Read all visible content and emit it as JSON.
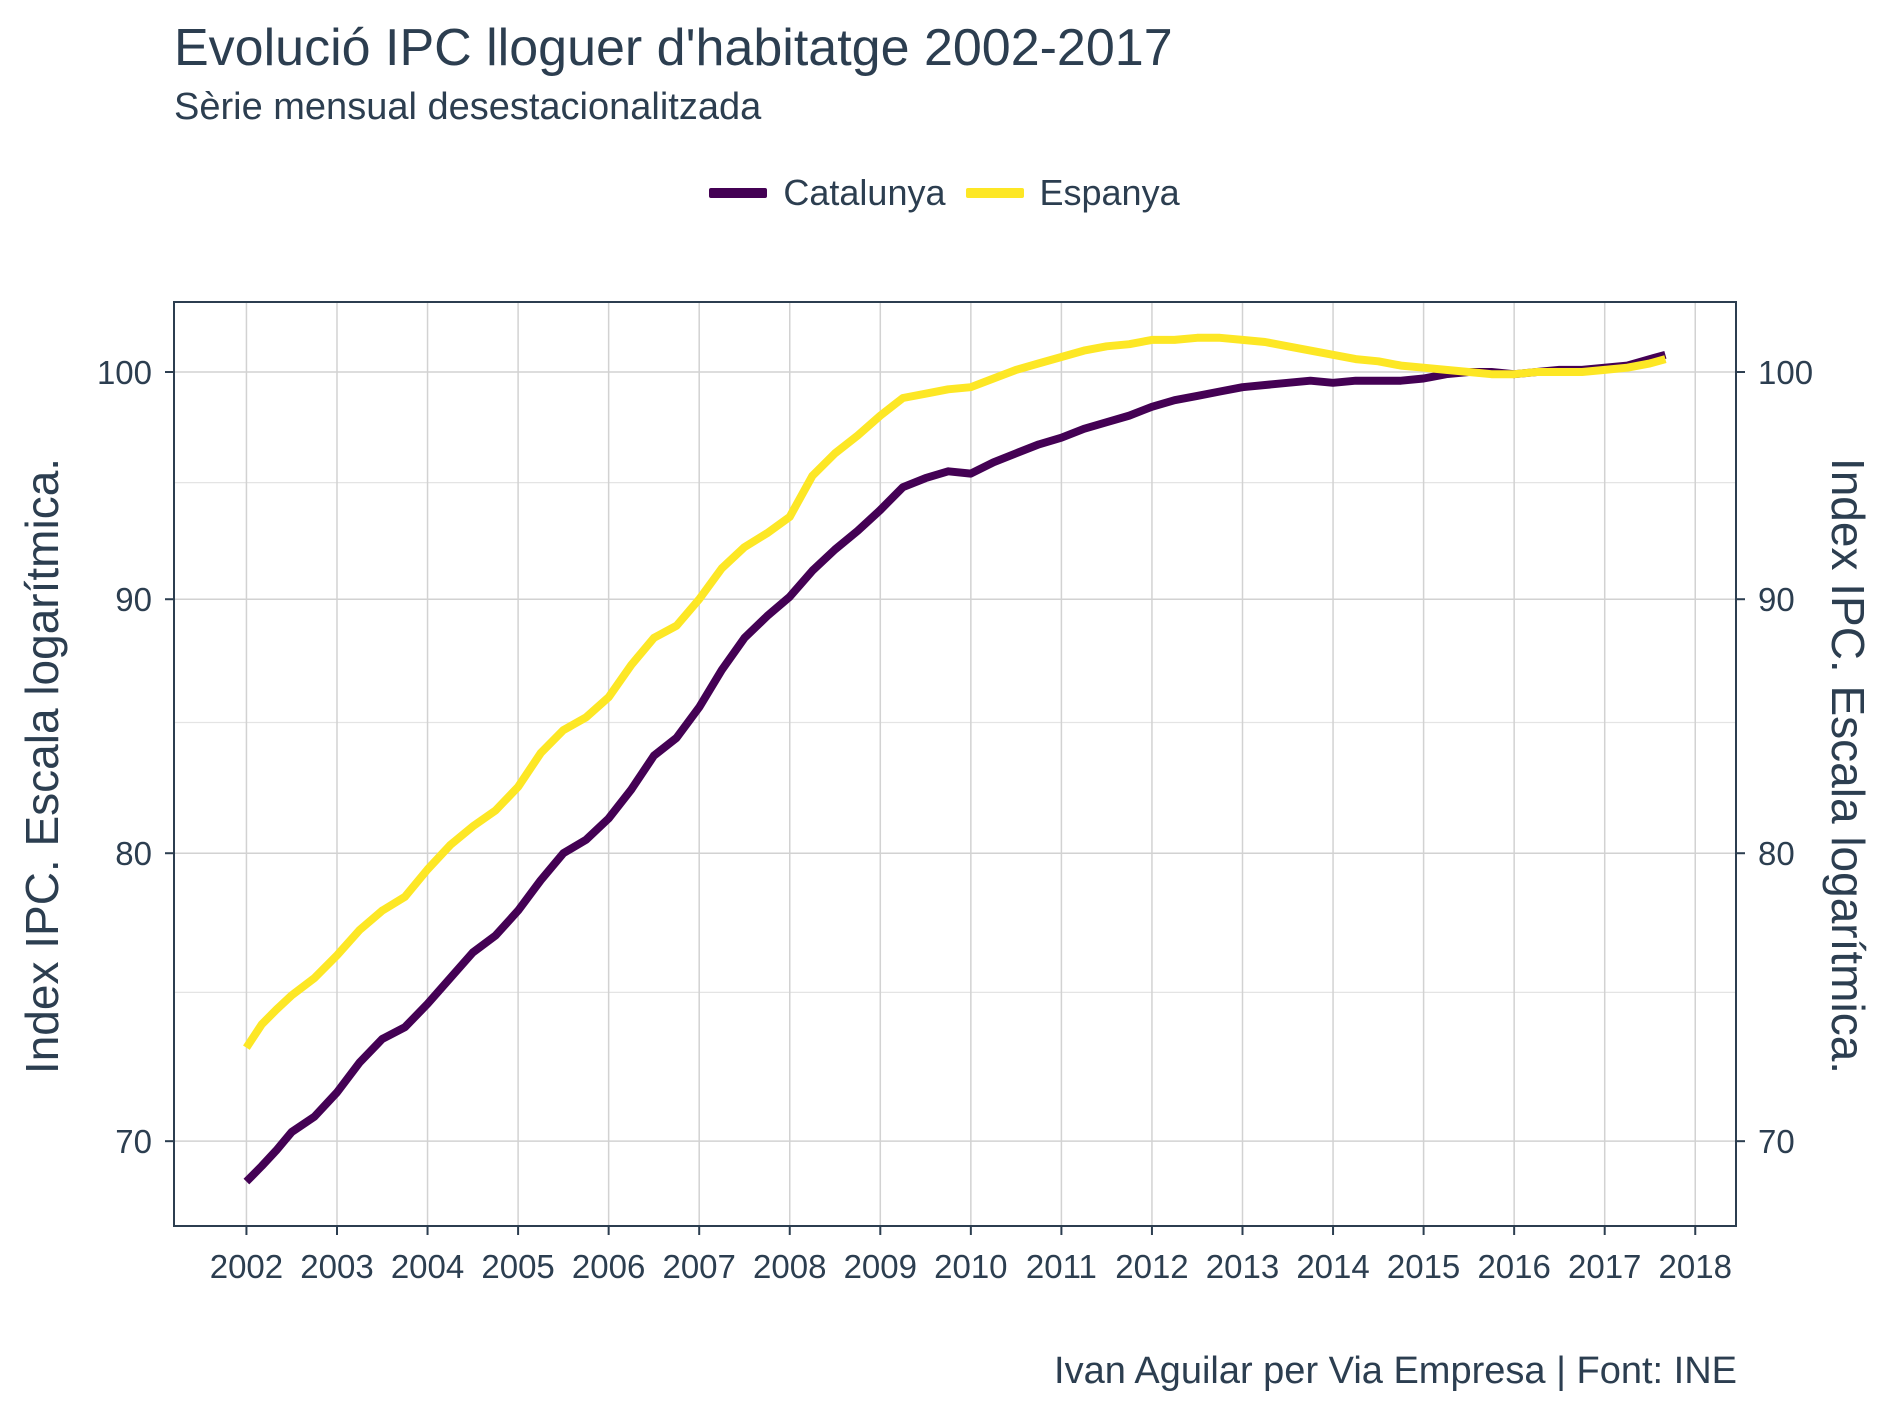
{
  "chart_data": {
    "type": "line",
    "title": "Evolució IPC lloguer d'habitatge 2002-2017",
    "subtitle": "Sèrie mensual desestacionalitzada",
    "caption": "Ivan Aguilar per Via Empresa | Font: INE",
    "ylabel": "Index IPC. Escala logarítmica.",
    "ylabel_right": "Index IPC. Escala logarítmica.",
    "xlabel": "",
    "y_scale": "log",
    "xlim": [
      2001.2,
      2018.45
    ],
    "ylim": [
      67.3,
      103.3
    ],
    "x_ticks": [
      2002,
      2003,
      2004,
      2005,
      2006,
      2007,
      2008,
      2009,
      2010,
      2011,
      2012,
      2013,
      2014,
      2015,
      2016,
      2017,
      2018
    ],
    "x_tick_labels": [
      "2002",
      "2003",
      "2004",
      "2005",
      "2006",
      "2007",
      "2008",
      "2009",
      "2010",
      "2011",
      "2012",
      "2013",
      "2014",
      "2015",
      "2016",
      "2017",
      "2018"
    ],
    "y_ticks": [
      70,
      80,
      90,
      100
    ],
    "y_tick_labels": [
      "70",
      "80",
      "90",
      "100"
    ],
    "y_minor_ticks": [
      75,
      85,
      95
    ],
    "legend_position": "top",
    "grid": true,
    "series": [
      {
        "name": "Catalunya",
        "color": "#440154",
        "x": [
          2002.0,
          2002.17,
          2002.33,
          2002.5,
          2002.75,
          2003.0,
          2003.25,
          2003.5,
          2003.75,
          2004.0,
          2004.25,
          2004.5,
          2004.75,
          2005.0,
          2005.25,
          2005.5,
          2005.75,
          2006.0,
          2006.25,
          2006.5,
          2006.75,
          2007.0,
          2007.25,
          2007.5,
          2007.75,
          2008.0,
          2008.25,
          2008.5,
          2008.75,
          2009.0,
          2009.25,
          2009.5,
          2009.75,
          2010.0,
          2010.25,
          2010.5,
          2010.75,
          2011.0,
          2011.25,
          2011.5,
          2011.75,
          2012.0,
          2012.25,
          2012.5,
          2012.75,
          2013.0,
          2013.25,
          2013.5,
          2013.75,
          2014.0,
          2014.25,
          2014.5,
          2014.75,
          2015.0,
          2015.25,
          2015.5,
          2015.75,
          2016.0,
          2016.25,
          2016.5,
          2016.75,
          2017.0,
          2017.25,
          2017.5,
          2017.67
        ],
        "y": [
          68.7,
          69.2,
          69.7,
          70.3,
          70.8,
          71.6,
          72.6,
          73.4,
          73.8,
          74.6,
          75.5,
          76.4,
          77.0,
          77.9,
          79.0,
          80.0,
          80.5,
          81.3,
          82.4,
          83.7,
          84.4,
          85.6,
          87.1,
          88.4,
          89.3,
          90.1,
          91.2,
          92.1,
          92.9,
          93.8,
          94.8,
          95.2,
          95.5,
          95.4,
          95.9,
          96.3,
          96.7,
          97.0,
          97.4,
          97.7,
          98.0,
          98.4,
          98.7,
          98.9,
          99.1,
          99.3,
          99.4,
          99.5,
          99.6,
          99.5,
          99.6,
          99.6,
          99.6,
          99.7,
          99.9,
          100.0,
          100.0,
          99.9,
          100.0,
          100.1,
          100.1,
          100.2,
          100.3,
          100.6,
          100.8
        ]
      },
      {
        "name": "Espanya",
        "color": "#FDE725",
        "x": [
          2002.0,
          2002.17,
          2002.33,
          2002.5,
          2002.75,
          2003.0,
          2003.25,
          2003.5,
          2003.75,
          2004.0,
          2004.25,
          2004.5,
          2004.75,
          2005.0,
          2005.25,
          2005.5,
          2005.75,
          2006.0,
          2006.25,
          2006.5,
          2006.75,
          2007.0,
          2007.25,
          2007.5,
          2007.75,
          2008.0,
          2008.25,
          2008.5,
          2008.75,
          2009.0,
          2009.25,
          2009.5,
          2009.75,
          2010.0,
          2010.25,
          2010.5,
          2010.75,
          2011.0,
          2011.25,
          2011.5,
          2011.75,
          2012.0,
          2012.25,
          2012.5,
          2012.75,
          2013.0,
          2013.25,
          2013.5,
          2013.75,
          2014.0,
          2014.25,
          2014.5,
          2014.75,
          2015.0,
          2015.25,
          2015.5,
          2015.75,
          2016.0,
          2016.25,
          2016.5,
          2016.75,
          2017.0,
          2017.25,
          2017.5,
          2017.67
        ],
        "y": [
          73.1,
          73.9,
          74.4,
          74.9,
          75.5,
          76.3,
          77.2,
          77.9,
          78.4,
          79.4,
          80.3,
          81.0,
          81.6,
          82.5,
          83.8,
          84.7,
          85.2,
          86.0,
          87.3,
          88.4,
          88.9,
          90.0,
          91.3,
          92.2,
          92.8,
          93.5,
          95.3,
          96.3,
          97.1,
          98.0,
          98.8,
          99.0,
          99.2,
          99.3,
          99.7,
          100.1,
          100.4,
          100.7,
          101.0,
          101.2,
          101.3,
          101.5,
          101.5,
          101.6,
          101.6,
          101.5,
          101.4,
          101.2,
          101.0,
          100.8,
          100.6,
          100.5,
          100.3,
          100.2,
          100.1,
          100.0,
          99.9,
          99.9,
          100.0,
          100.0,
          100.0,
          100.1,
          100.2,
          100.4,
          100.6
        ]
      }
    ]
  }
}
